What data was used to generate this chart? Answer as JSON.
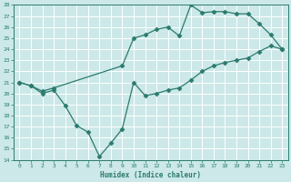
{
  "xlabel": "Humidex (Indice chaleur)",
  "line_color": "#2a7b6e",
  "bg_color": "#cce8e8",
  "grid_color": "#b8d8d8",
  "ylim": [
    14,
    28
  ],
  "xlim": [
    -0.5,
    23.5
  ],
  "yticks": [
    14,
    15,
    16,
    17,
    18,
    19,
    20,
    21,
    22,
    23,
    24,
    25,
    26,
    27,
    28
  ],
  "xticks": [
    0,
    1,
    2,
    3,
    4,
    5,
    6,
    7,
    8,
    9,
    10,
    11,
    12,
    13,
    14,
    15,
    16,
    17,
    18,
    19,
    20,
    21,
    22,
    23
  ],
  "line1_x": [
    0,
    1,
    2,
    3,
    9,
    10,
    11,
    12,
    13,
    14,
    15,
    16,
    17,
    18,
    19,
    20,
    21,
    22,
    23
  ],
  "line1_y": [
    21,
    20.7,
    20.2,
    20.5,
    22.5,
    25.0,
    25.3,
    25.8,
    26.0,
    25.2,
    28.0,
    27.3,
    27.4,
    27.4,
    27.2,
    27.2,
    26.3,
    25.3,
    24.0
  ],
  "line2_x": [
    0,
    1,
    2,
    3,
    4,
    5,
    6,
    7,
    8,
    9,
    10,
    11,
    12,
    13,
    14,
    15,
    16,
    17,
    18,
    19,
    20,
    21,
    22,
    23
  ],
  "line2_y": [
    21,
    20.7,
    20.0,
    20.3,
    18.9,
    17.1,
    16.5,
    14.3,
    15.5,
    16.8,
    21.0,
    19.8,
    20.0,
    20.3,
    20.5,
    21.2,
    22.0,
    22.5,
    22.8,
    23.0,
    23.2,
    23.8,
    24.3,
    24.0
  ],
  "marker": "D",
  "marker_size": 2.5
}
